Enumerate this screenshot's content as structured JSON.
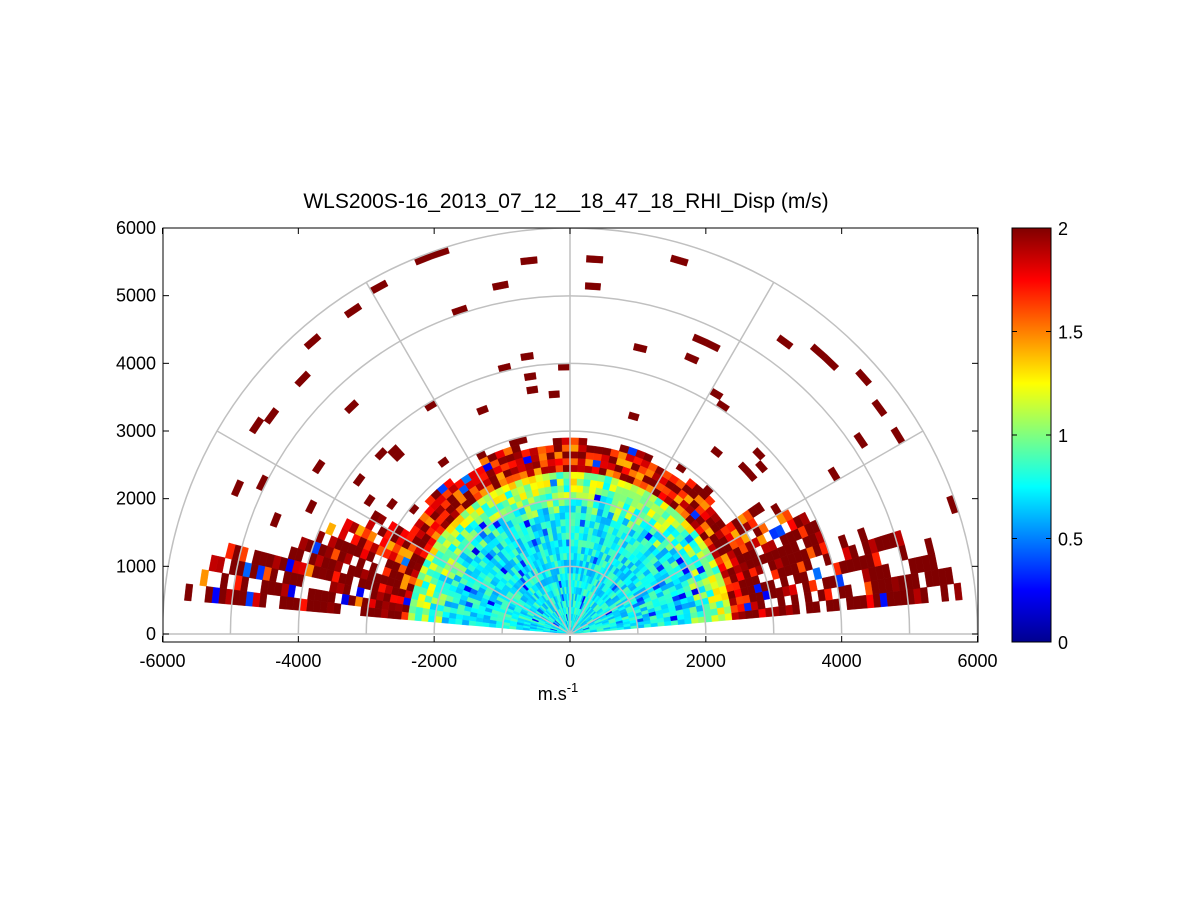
{
  "chart_data": {
    "type": "heatmap",
    "subtype": "polar RHI sector",
    "title": "WLS200S-16_2013_07_12__18_47_18_RHI_Disp (m/s)",
    "xlabel": "m.s",
    "xlabel_superscript": "-1",
    "ylabel": "",
    "xlim": [
      -6000,
      6000
    ],
    "ylim": [
      -100,
      6000
    ],
    "xticks": [
      "-6000",
      "-4000",
      "-2000",
      "0",
      "2000",
      "4000",
      "6000"
    ],
    "yticks": [
      "0",
      "1000",
      "2000",
      "3000",
      "4000",
      "5000",
      "6000"
    ],
    "polar_grid": {
      "range_rings_m": [
        1000,
        2000,
        3000,
        4000,
        5000,
        6000
      ],
      "spokes_deg": [
        0,
        30,
        60,
        90,
        120,
        150,
        180
      ]
    },
    "colorbar": {
      "colormap": "jet",
      "min": 0,
      "max": 2,
      "ticks": [
        "0",
        "0.5",
        "1",
        "1.5",
        "2"
      ]
    },
    "scan": {
      "elevation_range_deg": [
        5,
        175
      ],
      "max_range_m": 6000,
      "dense_region_range_m": 2800,
      "low_elevation_extended_range_m": 5800
    },
    "grid_color": "#c0c0c0",
    "background": "#ffffff"
  }
}
